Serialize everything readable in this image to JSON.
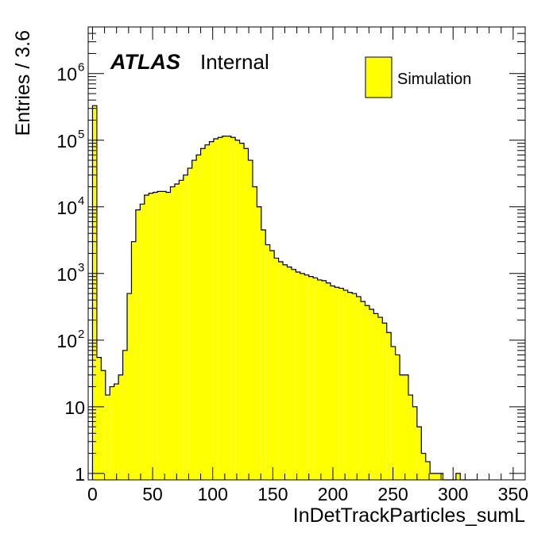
{
  "chart_data": {
    "type": "bar",
    "subtype": "histogram",
    "xlabel": "InDetTrackParticles_sumL",
    "ylabel": "Entries / 3.6",
    "xlim": [
      -3.6,
      360
    ],
    "ylim": [
      0.8,
      5000000
    ],
    "yscale": "log",
    "grid": false,
    "legend_position": "top-right",
    "label_atlas": "ATLAS",
    "label_status": "Internal",
    "x_ticks": [
      0,
      50,
      100,
      150,
      200,
      250,
      300,
      350
    ],
    "x_tick_labels": [
      "0",
      "50",
      "100",
      "150",
      "200",
      "250",
      "300",
      "350"
    ],
    "y_ticks": [
      {
        "value": 1,
        "base": "1",
        "exp": ""
      },
      {
        "value": 10,
        "base": "10",
        "exp": ""
      },
      {
        "value": 100,
        "base": "10",
        "exp": "2"
      },
      {
        "value": 1000,
        "base": "10",
        "exp": "3"
      },
      {
        "value": 10000,
        "base": "10",
        "exp": "4"
      },
      {
        "value": 100000,
        "base": "10",
        "exp": "5"
      },
      {
        "value": 1000000,
        "base": "10",
        "exp": "6"
      }
    ],
    "bin_width": 3.6,
    "fill_color": "#ffff00",
    "line_color": "#000000",
    "series": [
      {
        "name": "Simulation",
        "bin_lows": [
          0,
          3.6,
          7.2,
          10.8,
          14.4,
          18,
          21.6,
          25.2,
          28.8,
          32.4,
          36,
          39.6,
          43.2,
          46.8,
          50.4,
          54,
          57.6,
          61.2,
          64.8,
          68.4,
          72,
          75.6,
          79.2,
          82.8,
          86.4,
          90,
          93.6,
          97.2,
          100.8,
          104.4,
          108,
          111.6,
          115.2,
          118.8,
          122.4,
          126,
          129.6,
          133.2,
          136.8,
          140.4,
          144,
          147.6,
          151.2,
          154.8,
          158.4,
          162,
          165.6,
          169.2,
          172.8,
          176.4,
          180,
          183.6,
          187.2,
          190.8,
          194.4,
          198,
          201.6,
          205.2,
          208.8,
          212.4,
          216,
          219.6,
          223.2,
          226.8,
          230.4,
          234,
          237.6,
          241.2,
          244.8,
          248.4,
          252,
          255.6,
          259.2,
          262.8,
          266.4,
          270,
          273.6,
          277.2,
          280.8,
          284.4,
          288,
          291.6,
          295.2,
          298.8,
          302.4,
          306,
          309.6,
          313.2,
          316.8
        ],
        "values": [
          330000,
          55,
          35,
          15,
          20,
          22,
          30,
          70,
          500,
          3000,
          9000,
          11000,
          15000,
          16000,
          16500,
          17000,
          17000,
          16500,
          20000,
          22000,
          25000,
          30000,
          38000,
          50000,
          60000,
          75000,
          85000,
          95000,
          105000,
          110000,
          115000,
          115000,
          110000,
          100000,
          90000,
          75000,
          50000,
          20000,
          10000,
          4500,
          2700,
          2200,
          1700,
          1500,
          1350,
          1250,
          1150,
          1050,
          1000,
          950,
          900,
          860,
          800,
          780,
          720,
          650,
          620,
          600,
          560,
          520,
          500,
          450,
          380,
          330,
          290,
          250,
          220,
          180,
          130,
          80,
          60,
          30,
          30,
          15,
          10,
          5,
          2,
          1.5,
          1,
          1,
          1,
          0,
          0,
          0,
          1,
          0,
          0,
          0
        ]
      }
    ]
  }
}
